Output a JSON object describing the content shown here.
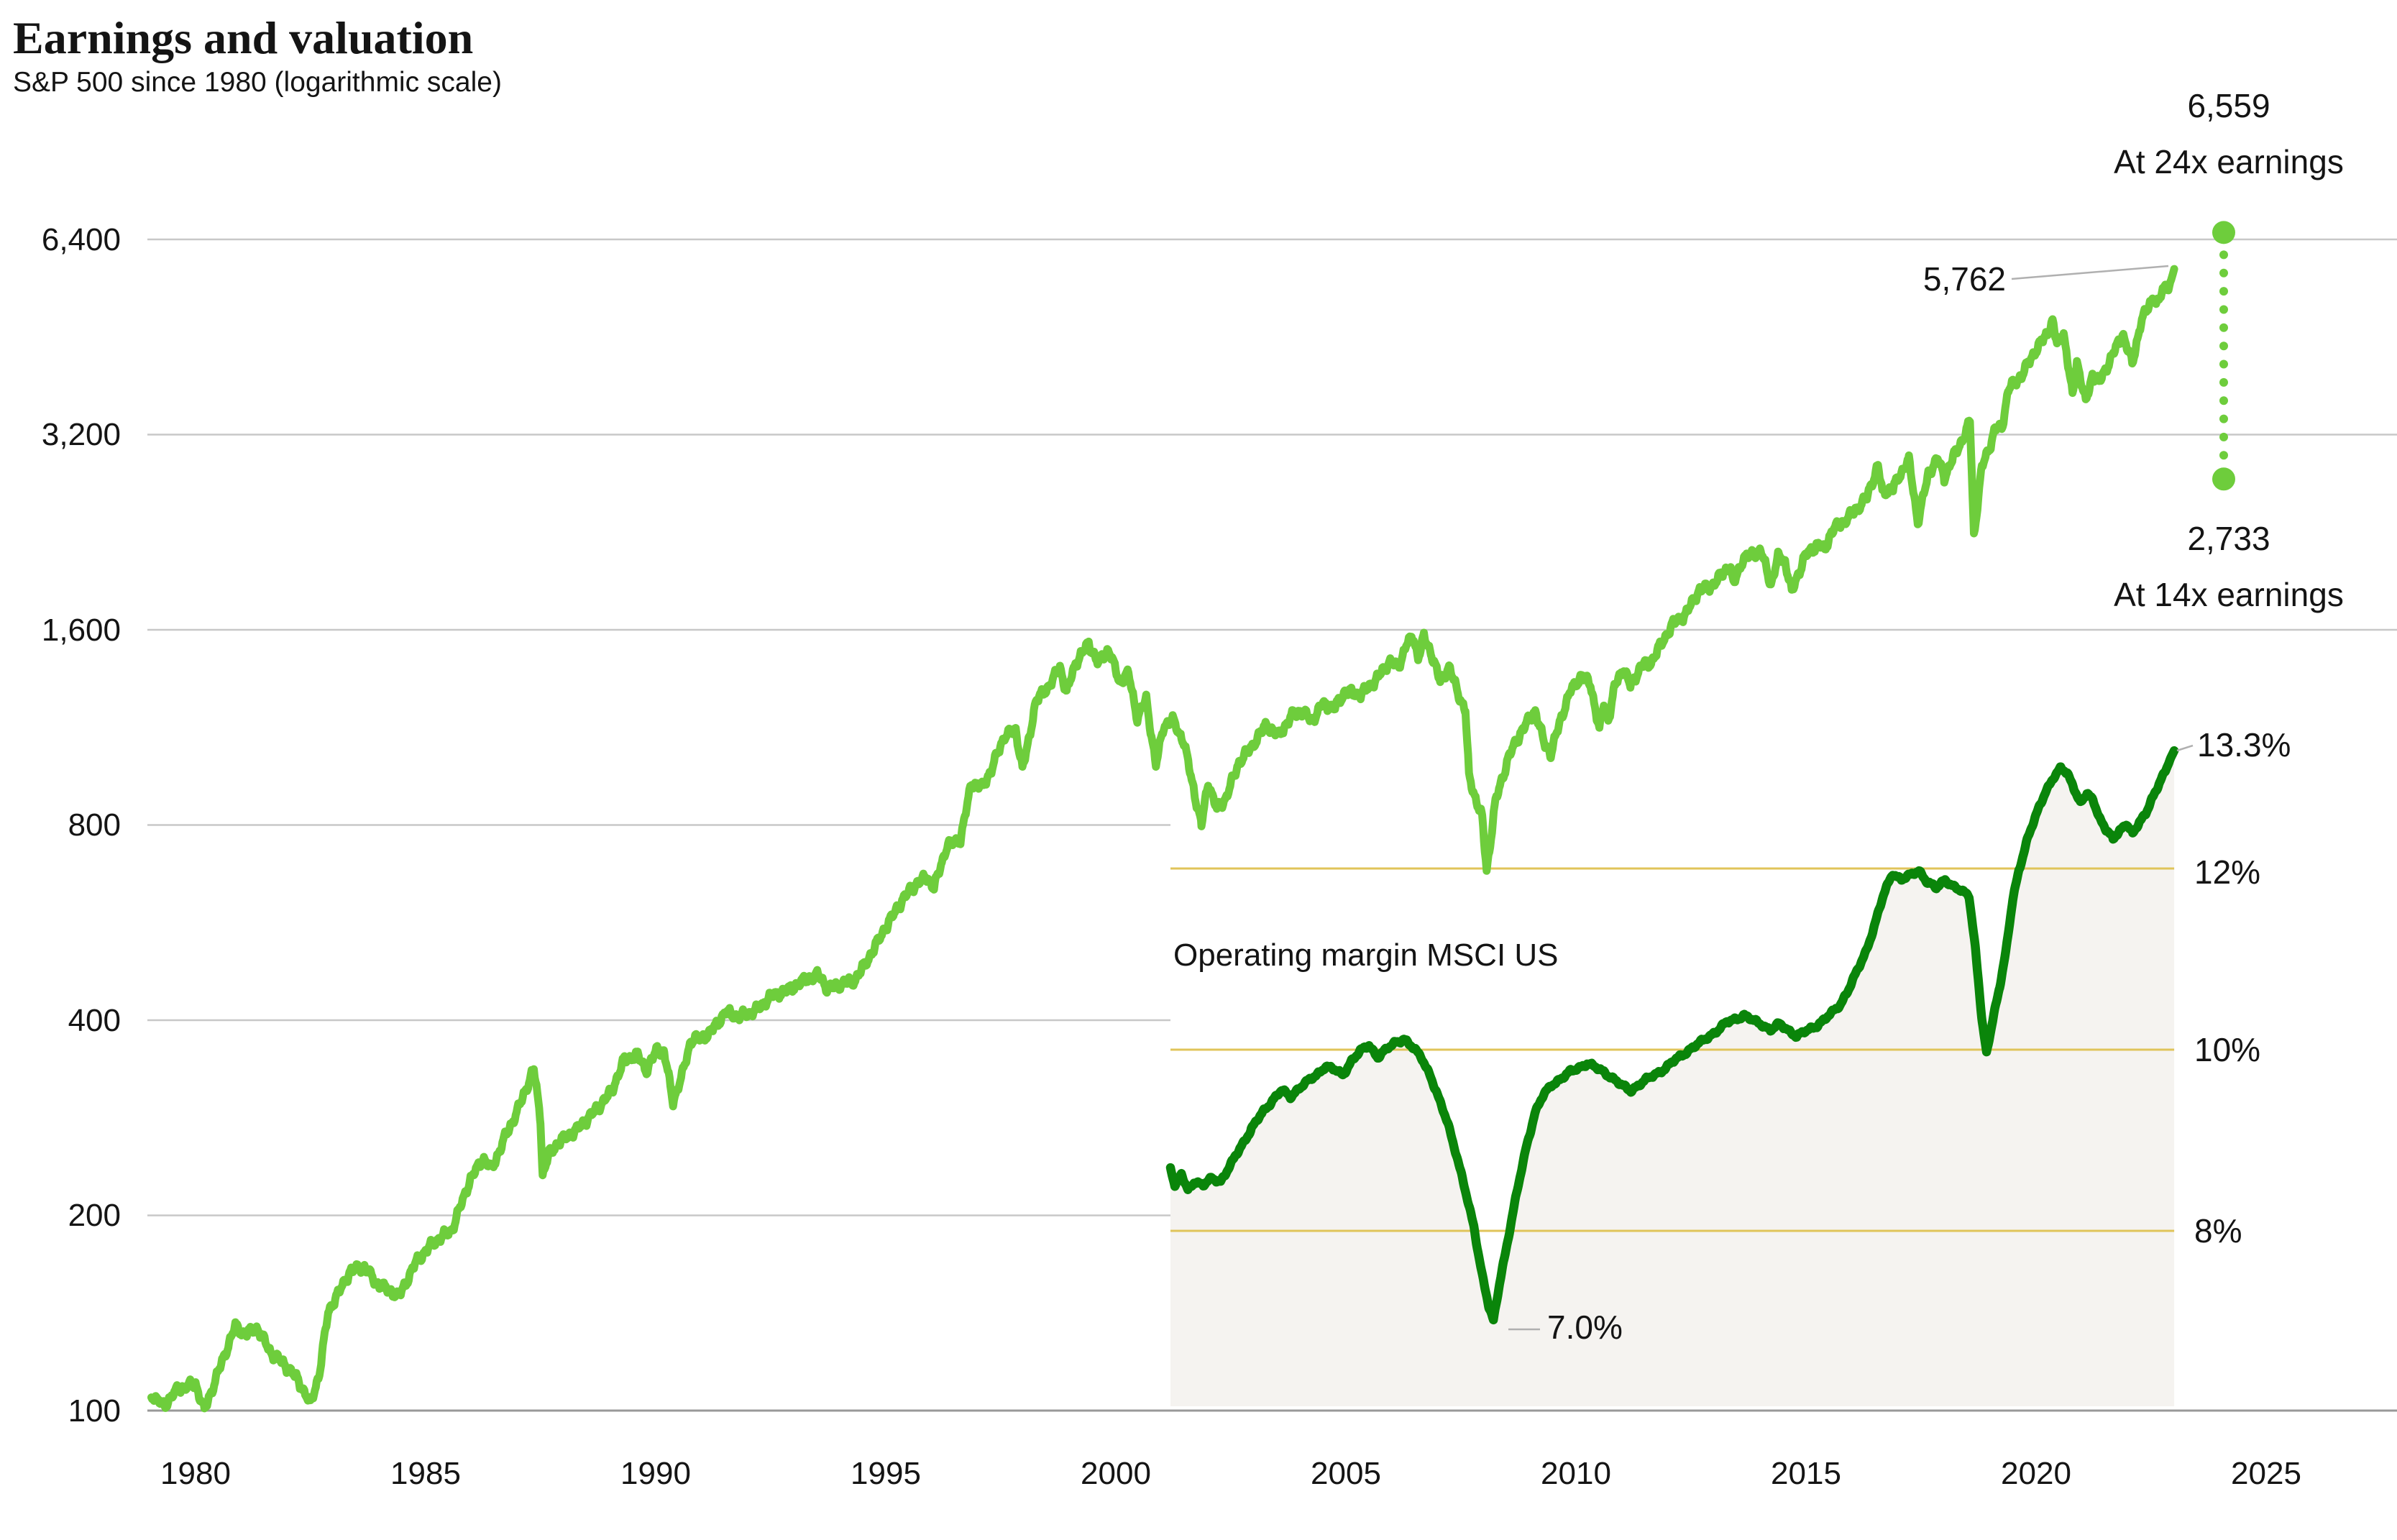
{
  "header": {
    "title": "Earnings and valuation",
    "subtitle": "S&P 500 since 1980 (logarithmic scale)"
  },
  "colors": {
    "sp500_line": "#6ecd3c",
    "margin_line": "#0a850a",
    "margin_fill": "#f5f3f0",
    "margin_gridline": "#e0c45a",
    "main_gridline": "#c8c8c8",
    "axis_line": "#999999",
    "callout_line": "#b0b0b0",
    "text": "#141414"
  },
  "annotations": {
    "high_value": "6,559",
    "high_caption": "At 24x earnings",
    "low_value": "2,733",
    "low_caption": "At 14x earnings",
    "last_price": "5,762",
    "margin_trough": "7.0%",
    "margin_last": "13.3%"
  },
  "chart_data": [
    {
      "type": "line",
      "name": "S&P 500",
      "scale": "logarithmic",
      "ylim": [
        100,
        6400
      ],
      "xlim": [
        1979,
        2025
      ],
      "y_ticks": [
        "100",
        "200",
        "400",
        "800",
        "1,600",
        "3,200",
        "6,400"
      ],
      "y_tick_values": [
        100,
        200,
        400,
        800,
        1600,
        3200,
        6400
      ],
      "x_ticks": [
        "1980",
        "1985",
        "1990",
        "1995",
        "2000",
        "2005",
        "2010",
        "2015",
        "2020",
        "2025"
      ],
      "end_value": 5762,
      "projection_high": 6559,
      "projection_low": 2733,
      "points": [
        [
          1979.0,
          105
        ],
        [
          1979.3,
          102
        ],
        [
          1979.6,
          108
        ],
        [
          1980.0,
          110
        ],
        [
          1980.2,
          100
        ],
        [
          1980.5,
          114
        ],
        [
          1980.9,
          135
        ],
        [
          1981.1,
          131
        ],
        [
          1981.4,
          134
        ],
        [
          1981.7,
          123
        ],
        [
          1982.0,
          118
        ],
        [
          1982.3,
          112
        ],
        [
          1982.6,
          102.5
        ],
        [
          1982.8,
          114
        ],
        [
          1983.0,
          142
        ],
        [
          1983.5,
          164
        ],
        [
          1983.8,
          167
        ],
        [
          1984.1,
          157
        ],
        [
          1984.4,
          153
        ],
        [
          1984.6,
          150
        ],
        [
          1985.0,
          170
        ],
        [
          1985.4,
          182
        ],
        [
          1985.8,
          190
        ],
        [
          1986.2,
          226
        ],
        [
          1986.5,
          245
        ],
        [
          1986.7,
          236
        ],
        [
          1987.0,
          264
        ],
        [
          1987.3,
          292
        ],
        [
          1987.6,
          330
        ],
        [
          1987.65,
          336
        ],
        [
          1987.8,
          282
        ],
        [
          1987.85,
          230
        ],
        [
          1988.0,
          250
        ],
        [
          1988.3,
          262
        ],
        [
          1988.6,
          270
        ],
        [
          1989.0,
          288
        ],
        [
          1989.4,
          310
        ],
        [
          1989.7,
          348
        ],
        [
          1990.0,
          353
        ],
        [
          1990.2,
          335
        ],
        [
          1990.45,
          362
        ],
        [
          1990.6,
          356
        ],
        [
          1990.8,
          300
        ],
        [
          1991.0,
          328
        ],
        [
          1991.2,
          372
        ],
        [
          1991.6,
          380
        ],
        [
          1992.0,
          412
        ],
        [
          1992.3,
          405
        ],
        [
          1992.7,
          415
        ],
        [
          1993.0,
          435
        ],
        [
          1993.4,
          445
        ],
        [
          1993.8,
          462
        ],
        [
          1994.1,
          470
        ],
        [
          1994.3,
          446
        ],
        [
          1994.6,
          455
        ],
        [
          1994.9,
          460
        ],
        [
          1995.2,
          495
        ],
        [
          1995.6,
          555
        ],
        [
          1996.0,
          615
        ],
        [
          1996.3,
          650
        ],
        [
          1996.55,
          665
        ],
        [
          1996.7,
          640
        ],
        [
          1997.0,
          745
        ],
        [
          1997.3,
          760
        ],
        [
          1997.55,
          930
        ],
        [
          1997.8,
          915
        ],
        [
          1998.0,
          975
        ],
        [
          1998.3,
          1100
        ],
        [
          1998.55,
          1120
        ],
        [
          1998.7,
          980
        ],
        [
          1998.8,
          1040
        ],
        [
          1999.0,
          1240
        ],
        [
          1999.3,
          1310
        ],
        [
          1999.55,
          1400
        ],
        [
          1999.7,
          1280
        ],
        [
          1999.9,
          1420
        ],
        [
          2000.2,
          1525
        ],
        [
          2000.4,
          1425
        ],
        [
          2000.65,
          1490
        ],
        [
          2000.9,
          1330
        ],
        [
          2001.1,
          1370
        ],
        [
          2001.3,
          1170
        ],
        [
          2001.5,
          1250
        ],
        [
          2001.72,
          990
        ],
        [
          2001.9,
          1140
        ],
        [
          2002.1,
          1160
        ],
        [
          2002.35,
          1075
        ],
        [
          2002.6,
          890
        ],
        [
          2002.75,
          800
        ],
        [
          2002.9,
          930
        ],
        [
          2003.1,
          845
        ],
        [
          2003.3,
          880
        ],
        [
          2003.6,
          1000
        ],
        [
          2003.9,
          1060
        ],
        [
          2004.2,
          1140
        ],
        [
          2004.5,
          1100
        ],
        [
          2004.8,
          1180
        ],
        [
          2005.0,
          1200
        ],
        [
          2005.25,
          1160
        ],
        [
          2005.5,
          1230
        ],
        [
          2005.75,
          1210
        ],
        [
          2006.0,
          1285
        ],
        [
          2006.35,
          1270
        ],
        [
          2006.7,
          1340
        ],
        [
          2007.0,
          1430
        ],
        [
          2007.2,
          1400
        ],
        [
          2007.4,
          1530
        ],
        [
          2007.55,
          1550
        ],
        [
          2007.65,
          1450
        ],
        [
          2007.78,
          1560
        ],
        [
          2007.95,
          1470
        ],
        [
          2008.15,
          1330
        ],
        [
          2008.35,
          1400
        ],
        [
          2008.55,
          1280
        ],
        [
          2008.72,
          1200
        ],
        [
          2008.8,
          950
        ],
        [
          2008.95,
          880
        ],
        [
          2009.1,
          820
        ],
        [
          2009.2,
          680
        ],
        [
          2009.4,
          870
        ],
        [
          2009.7,
          1020
        ],
        [
          2010.0,
          1120
        ],
        [
          2010.3,
          1200
        ],
        [
          2010.5,
          1070
        ],
        [
          2010.65,
          1030
        ],
        [
          2010.9,
          1180
        ],
        [
          2011.1,
          1290
        ],
        [
          2011.35,
          1360
        ],
        [
          2011.55,
          1320
        ],
        [
          2011.75,
          1120
        ],
        [
          2011.85,
          1230
        ],
        [
          2011.95,
          1160
        ],
        [
          2012.1,
          1310
        ],
        [
          2012.3,
          1400
        ],
        [
          2012.45,
          1310
        ],
        [
          2012.7,
          1410
        ],
        [
          2012.9,
          1420
        ],
        [
          2013.1,
          1500
        ],
        [
          2013.4,
          1630
        ],
        [
          2013.7,
          1690
        ],
        [
          2014.0,
          1840
        ],
        [
          2014.3,
          1870
        ],
        [
          2014.55,
          1960
        ],
        [
          2014.7,
          2010
        ],
        [
          2014.78,
          1880
        ],
        [
          2015.0,
          2060
        ],
        [
          2015.4,
          2120
        ],
        [
          2015.63,
          1880
        ],
        [
          2015.8,
          2080
        ],
        [
          2015.95,
          2040
        ],
        [
          2016.1,
          1830
        ],
        [
          2016.4,
          2080
        ],
        [
          2016.7,
          2170
        ],
        [
          2016.85,
          2130
        ],
        [
          2017.0,
          2270
        ],
        [
          2017.4,
          2390
        ],
        [
          2017.8,
          2560
        ],
        [
          2018.05,
          2870
        ],
        [
          2018.15,
          2600
        ],
        [
          2018.4,
          2650
        ],
        [
          2018.7,
          2900
        ],
        [
          2018.75,
          2920
        ],
        [
          2018.95,
          2350
        ],
        [
          2019.2,
          2800
        ],
        [
          2019.4,
          2940
        ],
        [
          2019.55,
          2750
        ],
        [
          2019.8,
          3000
        ],
        [
          2020.05,
          3230
        ],
        [
          2020.13,
          3380
        ],
        [
          2020.22,
          2240
        ],
        [
          2020.4,
          2850
        ],
        [
          2020.6,
          3100
        ],
        [
          2020.7,
          3270
        ],
        [
          2020.85,
          3270
        ],
        [
          2021.0,
          3760
        ],
        [
          2021.3,
          3950
        ],
        [
          2021.6,
          4300
        ],
        [
          2021.85,
          4550
        ],
        [
          2022.0,
          4790
        ],
        [
          2022.1,
          4400
        ],
        [
          2022.25,
          4580
        ],
        [
          2022.45,
          3670
        ],
        [
          2022.55,
          4150
        ],
        [
          2022.75,
          3580
        ],
        [
          2022.9,
          3960
        ],
        [
          2023.05,
          3850
        ],
        [
          2023.25,
          4100
        ],
        [
          2023.5,
          4450
        ],
        [
          2023.58,
          4580
        ],
        [
          2023.8,
          4120
        ],
        [
          2024.0,
          4770
        ],
        [
          2024.2,
          5100
        ],
        [
          2024.28,
          5250
        ],
        [
          2024.35,
          5050
        ],
        [
          2024.55,
          5460
        ],
        [
          2024.62,
          5350
        ],
        [
          2024.75,
          5762
        ]
      ]
    },
    {
      "type": "area",
      "name": "Operating margin MSCI US",
      "title": "Operating margin MSCI US",
      "scale": "linear",
      "unit": "%",
      "xlim": [
        2001.75,
        2024.75
      ],
      "gridlines": [
        {
          "value": 8,
          "label": "8%"
        },
        {
          "value": 10,
          "label": "10%"
        },
        {
          "value": 12,
          "label": "12%"
        }
      ],
      "end_label": "13.3%",
      "end_value": 13.3,
      "trough_label": "7.0%",
      "trough_value": 7.0,
      "baseline_value": 6.05,
      "points": [
        [
          2001.75,
          8.7
        ],
        [
          2001.85,
          8.5
        ],
        [
          2002.0,
          8.62
        ],
        [
          2002.15,
          8.45
        ],
        [
          2002.3,
          8.55
        ],
        [
          2002.5,
          8.5
        ],
        [
          2002.7,
          8.58
        ],
        [
          2002.9,
          8.55
        ],
        [
          2003.1,
          8.7
        ],
        [
          2003.35,
          8.92
        ],
        [
          2003.6,
          9.12
        ],
        [
          2003.85,
          9.3
        ],
        [
          2004.1,
          9.45
        ],
        [
          2004.3,
          9.55
        ],
        [
          2004.5,
          9.48
        ],
        [
          2004.7,
          9.58
        ],
        [
          2004.9,
          9.65
        ],
        [
          2005.1,
          9.72
        ],
        [
          2005.3,
          9.82
        ],
        [
          2005.5,
          9.78
        ],
        [
          2005.7,
          9.72
        ],
        [
          2005.9,
          9.88
        ],
        [
          2006.1,
          9.98
        ],
        [
          2006.3,
          10.05
        ],
        [
          2006.5,
          9.92
        ],
        [
          2006.7,
          10.0
        ],
        [
          2006.9,
          10.08
        ],
        [
          2007.1,
          10.12
        ],
        [
          2007.3,
          10.02
        ],
        [
          2007.5,
          9.92
        ],
        [
          2007.7,
          9.72
        ],
        [
          2007.9,
          9.45
        ],
        [
          2008.1,
          9.2
        ],
        [
          2008.3,
          8.85
        ],
        [
          2008.5,
          8.45
        ],
        [
          2008.7,
          8.05
        ],
        [
          2008.9,
          7.5
        ],
        [
          2009.05,
          7.15
        ],
        [
          2009.15,
          7.0
        ],
        [
          2009.3,
          7.45
        ],
        [
          2009.5,
          7.95
        ],
        [
          2009.7,
          8.45
        ],
        [
          2009.9,
          8.92
        ],
        [
          2010.1,
          9.3
        ],
        [
          2010.3,
          9.5
        ],
        [
          2010.5,
          9.62
        ],
        [
          2010.7,
          9.68
        ],
        [
          2010.9,
          9.75
        ],
        [
          2011.1,
          9.8
        ],
        [
          2011.3,
          9.85
        ],
        [
          2011.5,
          9.8
        ],
        [
          2011.7,
          9.75
        ],
        [
          2011.9,
          9.68
        ],
        [
          2012.1,
          9.6
        ],
        [
          2012.3,
          9.55
        ],
        [
          2012.5,
          9.62
        ],
        [
          2012.7,
          9.68
        ],
        [
          2012.9,
          9.74
        ],
        [
          2013.1,
          9.8
        ],
        [
          2013.3,
          9.88
        ],
        [
          2013.5,
          9.95
        ],
        [
          2013.7,
          10.02
        ],
        [
          2013.9,
          10.08
        ],
        [
          2014.1,
          10.15
        ],
        [
          2014.3,
          10.22
        ],
        [
          2014.5,
          10.3
        ],
        [
          2014.7,
          10.34
        ],
        [
          2014.9,
          10.38
        ],
        [
          2015.1,
          10.32
        ],
        [
          2015.3,
          10.28
        ],
        [
          2015.5,
          10.22
        ],
        [
          2015.7,
          10.28
        ],
        [
          2015.9,
          10.22
        ],
        [
          2016.1,
          10.15
        ],
        [
          2016.3,
          10.2
        ],
        [
          2016.5,
          10.25
        ],
        [
          2016.7,
          10.32
        ],
        [
          2016.9,
          10.4
        ],
        [
          2017.1,
          10.5
        ],
        [
          2017.3,
          10.68
        ],
        [
          2017.5,
          10.88
        ],
        [
          2017.7,
          11.1
        ],
        [
          2017.9,
          11.4
        ],
        [
          2018.1,
          11.72
        ],
        [
          2018.3,
          11.95
        ],
        [
          2018.5,
          11.88
        ],
        [
          2018.7,
          11.92
        ],
        [
          2018.9,
          11.98
        ],
        [
          2019.1,
          11.85
        ],
        [
          2019.3,
          11.78
        ],
        [
          2019.5,
          11.88
        ],
        [
          2019.7,
          11.8
        ],
        [
          2019.9,
          11.74
        ],
        [
          2020.05,
          11.7
        ],
        [
          2020.2,
          11.1
        ],
        [
          2020.35,
          10.3
        ],
        [
          2020.45,
          9.95
        ],
        [
          2020.6,
          10.35
        ],
        [
          2020.75,
          10.7
        ],
        [
          2020.9,
          11.1
        ],
        [
          2021.05,
          11.65
        ],
        [
          2021.2,
          12.0
        ],
        [
          2021.4,
          12.35
        ],
        [
          2021.6,
          12.6
        ],
        [
          2021.8,
          12.85
        ],
        [
          2022.0,
          13.02
        ],
        [
          2022.15,
          13.1
        ],
        [
          2022.3,
          13.05
        ],
        [
          2022.45,
          12.9
        ],
        [
          2022.6,
          12.72
        ],
        [
          2022.75,
          12.82
        ],
        [
          2022.9,
          12.75
        ],
        [
          2023.05,
          12.55
        ],
        [
          2023.2,
          12.42
        ],
        [
          2023.35,
          12.32
        ],
        [
          2023.5,
          12.42
        ],
        [
          2023.65,
          12.5
        ],
        [
          2023.8,
          12.38
        ],
        [
          2023.95,
          12.5
        ],
        [
          2024.1,
          12.62
        ],
        [
          2024.25,
          12.78
        ],
        [
          2024.4,
          12.92
        ],
        [
          2024.55,
          13.08
        ],
        [
          2024.65,
          13.2
        ],
        [
          2024.75,
          13.3
        ]
      ]
    }
  ]
}
